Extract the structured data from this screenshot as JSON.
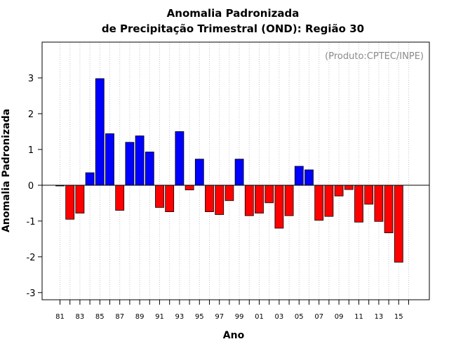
{
  "chart_data": {
    "type": "bar",
    "title": "Anomalia Padronizada",
    "subtitle": "de Precipitação Trimestral (OND): Região 30",
    "xlabel": "Ano",
    "ylabel": "Anomalia Padronizada",
    "annotation": "(Produto:CPTEC/INPE)",
    "ylim": [
      -3.2,
      4.0
    ],
    "yticks": [
      -3,
      -2,
      -1,
      0,
      1,
      2,
      3
    ],
    "ytick_labels": [
      "-3",
      "-2",
      "-1",
      "0",
      "1",
      "2",
      "3"
    ],
    "grid": "vertical dotted",
    "colors": {
      "positive": "#0000ff",
      "negative": "#ff0000"
    },
    "categories": [
      "81",
      "82",
      "83",
      "84",
      "85",
      "86",
      "87",
      "88",
      "89",
      "90",
      "91",
      "92",
      "93",
      "94",
      "95",
      "96",
      "97",
      "98",
      "99",
      "00",
      "01",
      "02",
      "03",
      "04",
      "05",
      "06",
      "07",
      "08",
      "09",
      "10",
      "11",
      "12",
      "13",
      "14",
      "15"
    ],
    "tick_labels": [
      "81",
      "83",
      "85",
      "87",
      "89",
      "91",
      "93",
      "95",
      "97",
      "99",
      "01",
      "03",
      "05",
      "07",
      "09",
      "11",
      "13",
      "15"
    ],
    "values": [
      -0.02,
      -0.95,
      -0.78,
      0.35,
      2.98,
      1.44,
      -0.7,
      1.2,
      1.38,
      0.93,
      -0.62,
      -0.74,
      1.5,
      -0.13,
      0.73,
      -0.74,
      -0.82,
      -0.43,
      0.73,
      -0.85,
      -0.78,
      -0.49,
      -1.2,
      -0.85,
      0.53,
      0.43,
      -0.98,
      -0.87,
      -0.3,
      -0.12,
      -1.03,
      -0.53,
      -1.01,
      -1.33,
      -2.15
    ]
  }
}
